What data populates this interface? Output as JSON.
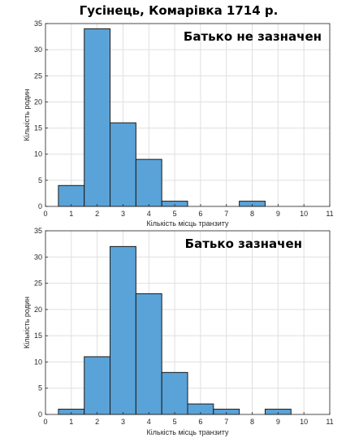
{
  "figure_title": "Гусінець, Комарівка 1714 р.",
  "colors": {
    "bar_fill": "#5aa3d8",
    "bar_edge": "#1a1a1a",
    "grid": "#dfdfdf",
    "axis": "#262626"
  },
  "chart_data": [
    {
      "type": "bar",
      "annotation": "Батько не зазначен",
      "annotation_placement": "top-right",
      "xlabel": "Кількість місць транзиту",
      "ylabel": "Кількість родин",
      "xlim": [
        0,
        11
      ],
      "ylim": [
        0,
        35
      ],
      "xticks": [
        0,
        1,
        2,
        3,
        4,
        5,
        6,
        7,
        8,
        9,
        10,
        11
      ],
      "yticks": [
        0,
        5,
        10,
        15,
        20,
        25,
        30,
        35
      ],
      "grid": true,
      "bin_width": 1,
      "x": [
        1,
        2,
        3,
        4,
        5,
        6,
        7,
        8,
        9,
        10
      ],
      "values": [
        4,
        34,
        16,
        9,
        1,
        0,
        0,
        1,
        0,
        0
      ]
    },
    {
      "type": "bar",
      "annotation": "Батько зазначен",
      "annotation_placement": "top-right",
      "xlabel": "Кількість місць транзиту",
      "ylabel": "Кількість родин",
      "xlim": [
        0,
        11
      ],
      "ylim": [
        0,
        35
      ],
      "xticks": [
        0,
        1,
        2,
        3,
        4,
        5,
        6,
        7,
        8,
        9,
        10,
        11
      ],
      "yticks": [
        0,
        5,
        10,
        15,
        20,
        25,
        30,
        35
      ],
      "grid": true,
      "bin_width": 1,
      "x": [
        1,
        2,
        3,
        4,
        5,
        6,
        7,
        8,
        9,
        10
      ],
      "values": [
        1,
        11,
        32,
        23,
        8,
        2,
        1,
        0,
        1,
        0
      ]
    }
  ]
}
